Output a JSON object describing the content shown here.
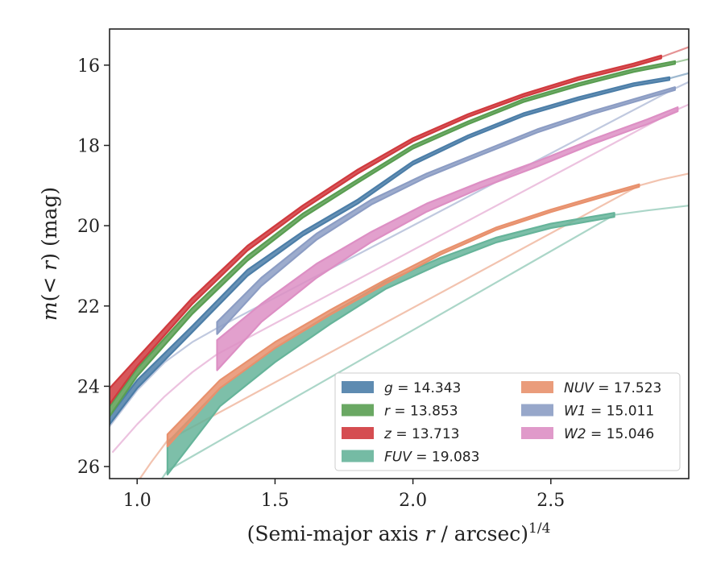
{
  "chart_data": {
    "type": "area",
    "xlabel": "(Semi-major axis r / arcsec)^{1/4}",
    "ylabel": "m(< r) (mag)",
    "xlim": [
      0.9,
      3.0
    ],
    "ylim": [
      26.3,
      15.1
    ],
    "y_inverted": true,
    "x_ticks": [
      1.0,
      1.5,
      2.0,
      2.5
    ],
    "x_tick_labels": [
      "1.0",
      "1.5",
      "2.0",
      "2.5"
    ],
    "y_ticks": [
      16,
      18,
      20,
      22,
      24,
      26
    ],
    "y_tick_labels": [
      "16",
      "18",
      "20",
      "22",
      "24",
      "26"
    ],
    "grid": false,
    "legend_position": "bottom-right",
    "series": [
      {
        "name": "g = 14.343",
        "band": "g",
        "value": "14.343",
        "color": "#4c7ea8",
        "band_x": [
          0.9,
          1.0,
          1.2,
          1.4,
          1.6,
          1.8,
          2.0,
          2.2,
          2.4,
          2.6,
          2.8,
          2.93
        ],
        "band_upper": [
          24.75,
          23.85,
          22.5,
          21.1,
          20.15,
          19.35,
          18.4,
          17.75,
          17.2,
          16.8,
          16.45,
          16.3
        ],
        "band_lower": [
          24.95,
          24.05,
          22.65,
          21.25,
          20.25,
          19.45,
          18.48,
          17.82,
          17.27,
          16.87,
          16.52,
          16.37
        ],
        "line_x": [
          2.93,
          3.0
        ],
        "line_y": [
          16.33,
          16.2
        ]
      },
      {
        "name": "r = 13.853",
        "band": "r",
        "value": "13.853",
        "color": "#5a9e52",
        "band_x": [
          0.9,
          1.0,
          1.2,
          1.4,
          1.6,
          1.8,
          2.0,
          2.2,
          2.4,
          2.6,
          2.8,
          2.95
        ],
        "band_upper": [
          24.5,
          23.55,
          22.05,
          20.75,
          19.7,
          18.85,
          18.0,
          17.4,
          16.85,
          16.45,
          16.1,
          15.9
        ],
        "band_lower": [
          24.75,
          23.75,
          22.2,
          20.87,
          19.8,
          18.93,
          18.08,
          17.47,
          16.92,
          16.52,
          16.17,
          15.97
        ],
        "line_x": [
          2.95,
          3.0
        ],
        "line_y": [
          15.93,
          15.85
        ]
      },
      {
        "name": "z = 13.713",
        "band": "z",
        "value": "13.713",
        "color": "#d03a3e",
        "band_x": [
          0.9,
          1.0,
          1.2,
          1.4,
          1.6,
          1.8,
          2.0,
          2.2,
          2.4,
          2.6,
          2.8,
          2.9
        ],
        "band_upper": [
          24.05,
          23.3,
          21.8,
          20.5,
          19.5,
          18.6,
          17.82,
          17.22,
          16.72,
          16.3,
          15.96,
          15.76
        ],
        "band_lower": [
          24.45,
          23.5,
          21.95,
          20.62,
          19.6,
          18.7,
          17.9,
          17.29,
          16.79,
          16.37,
          16.03,
          15.83
        ],
        "line_x": [
          2.9,
          3.0
        ],
        "line_y": [
          15.8,
          15.55
        ]
      },
      {
        "name": "FUV = 19.083",
        "band": "FUV",
        "value": "19.083",
        "color": "#66b49a",
        "band_x": [
          1.11,
          1.3,
          1.5,
          1.7,
          1.9,
          2.1,
          2.3,
          2.5,
          2.73
        ],
        "band_upper": [
          25.4,
          24.05,
          23.05,
          22.2,
          21.4,
          20.8,
          20.3,
          19.95,
          19.68
        ],
        "band_lower": [
          26.2,
          24.5,
          23.4,
          22.45,
          21.58,
          20.95,
          20.42,
          20.06,
          19.78
        ],
        "line_x": [
          1.05,
          1.08,
          1.11,
          2.73,
          2.85,
          3.0
        ],
        "line_y": [
          26.6,
          26.4,
          26.1,
          19.73,
          19.62,
          19.5
        ]
      },
      {
        "name": "NUV = 17.523",
        "band": "NUV",
        "value": "17.523",
        "color": "#e8916d",
        "band_x": [
          1.11,
          1.3,
          1.5,
          1.7,
          1.9,
          2.1,
          2.3,
          2.5,
          2.7,
          2.82
        ],
        "band_upper": [
          25.2,
          23.85,
          22.9,
          22.1,
          21.35,
          20.65,
          20.05,
          19.6,
          19.2,
          18.97
        ],
        "band_lower": [
          25.5,
          24.05,
          23.05,
          22.22,
          21.45,
          20.72,
          20.11,
          19.66,
          19.26,
          19.03
        ],
        "line_x": [
          0.98,
          1.05,
          1.11,
          2.82,
          2.9,
          3.0
        ],
        "line_y": [
          26.6,
          25.9,
          25.35,
          19.0,
          18.85,
          18.7
        ]
      },
      {
        "name": "W1 = 15.011",
        "band": "W1",
        "value": "15.011",
        "color": "#8c9dc4",
        "band_x": [
          1.29,
          1.45,
          1.65,
          1.85,
          2.05,
          2.25,
          2.45,
          2.65,
          2.85,
          2.95
        ],
        "band_upper": [
          22.4,
          21.3,
          20.2,
          19.35,
          18.7,
          18.15,
          17.6,
          17.15,
          16.75,
          16.55
        ],
        "band_lower": [
          22.7,
          21.5,
          20.35,
          19.47,
          18.79,
          18.23,
          17.68,
          17.22,
          16.82,
          16.62
        ],
        "line_x": [
          0.9,
          1.0,
          1.1,
          1.2,
          1.29,
          2.95,
          3.0
        ],
        "line_y": [
          25.0,
          24.1,
          23.4,
          22.9,
          22.55,
          16.58,
          16.42
        ]
      },
      {
        "name": "W2 = 15.046",
        "band": "W2",
        "value": "15.046",
        "color": "#dd8fc4",
        "band_x": [
          1.29,
          1.45,
          1.65,
          1.85,
          2.05,
          2.25,
          2.45,
          2.65,
          2.85,
          2.96
        ],
        "band_upper": [
          22.85,
          21.95,
          20.95,
          20.15,
          19.45,
          18.9,
          18.4,
          17.85,
          17.35,
          17.05
        ],
        "band_lower": [
          23.6,
          22.4,
          21.3,
          20.4,
          19.65,
          19.05,
          18.53,
          17.97,
          17.47,
          17.15
        ],
        "line_x": [
          0.91,
          1.0,
          1.1,
          1.2,
          1.29,
          2.96,
          3.0
        ],
        "line_y": [
          25.65,
          24.95,
          24.25,
          23.65,
          23.2,
          17.1,
          16.98
        ]
      }
    ]
  }
}
